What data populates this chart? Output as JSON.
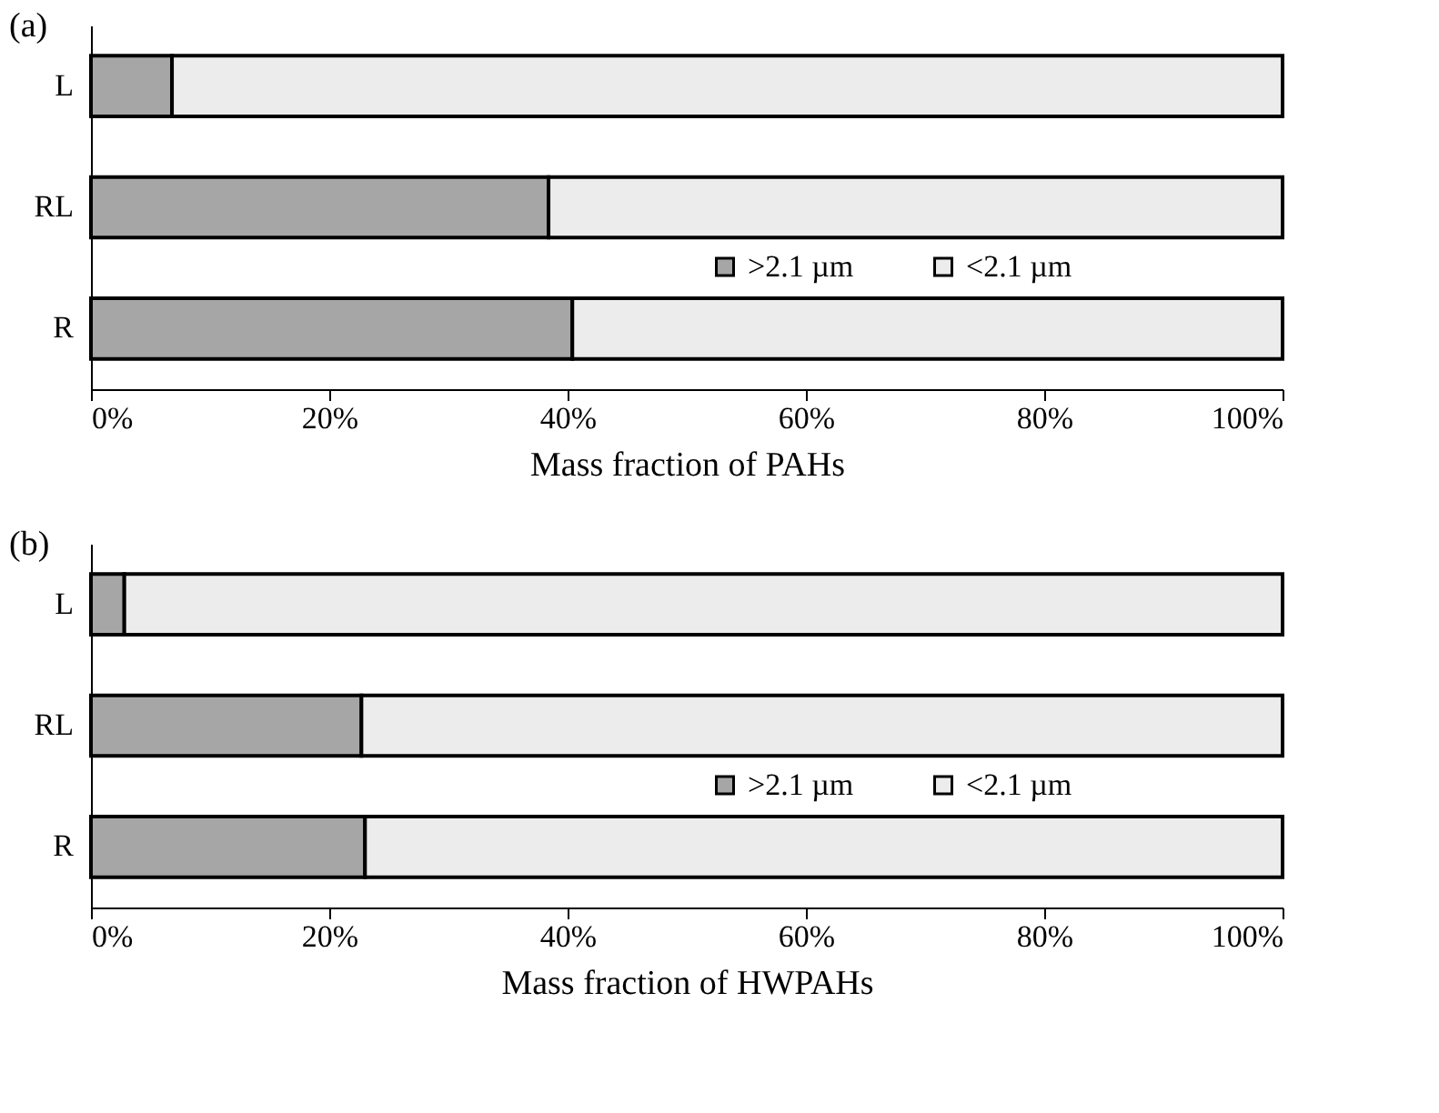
{
  "chart_data": [
    {
      "type": "bar",
      "title": "(a)",
      "orientation": "horizontal",
      "stacked": true,
      "xlabel": "Mass fraction of PAHs",
      "categories": [
        "L",
        "RL",
        "R"
      ],
      "series": [
        {
          "name": ">2.1 µm",
          "color": "#a6a6a6",
          "values": [
            6.8,
            38.4,
            40.4
          ]
        },
        {
          "name": "<2.1 µm",
          "color": "#ececec",
          "values": [
            93.2,
            61.6,
            59.6
          ]
        }
      ],
      "xlim": [
        0,
        100
      ],
      "xticks": [
        {
          "value": 0,
          "label": "0%"
        },
        {
          "value": 20,
          "label": "20%"
        },
        {
          "value": 40,
          "label": "40%"
        },
        {
          "value": 60,
          "label": "60%"
        },
        {
          "value": 80,
          "label": "80%"
        },
        {
          "value": 100,
          "label": "100%"
        }
      ],
      "grid": false,
      "legend": "right"
    },
    {
      "type": "bar",
      "title": "(b)",
      "orientation": "horizontal",
      "stacked": true,
      "xlabel": "Mass fraction of HWPAHs",
      "categories": [
        "L",
        "RL",
        "R"
      ],
      "series": [
        {
          "name": ">2.1 µm",
          "color": "#a6a6a6",
          "values": [
            2.8,
            22.7,
            23.0
          ]
        },
        {
          "name": "<2.1 µm",
          "color": "#ececec",
          "values": [
            97.2,
            77.3,
            77.0
          ]
        }
      ],
      "xlim": [
        0,
        100
      ],
      "xticks": [
        {
          "value": 0,
          "label": "0%"
        },
        {
          "value": 20,
          "label": "20%"
        },
        {
          "value": 40,
          "label": "40%"
        },
        {
          "value": 60,
          "label": "60%"
        },
        {
          "value": 80,
          "label": "80%"
        },
        {
          "value": 100,
          "label": "100%"
        }
      ],
      "grid": false,
      "legend": "right"
    }
  ]
}
